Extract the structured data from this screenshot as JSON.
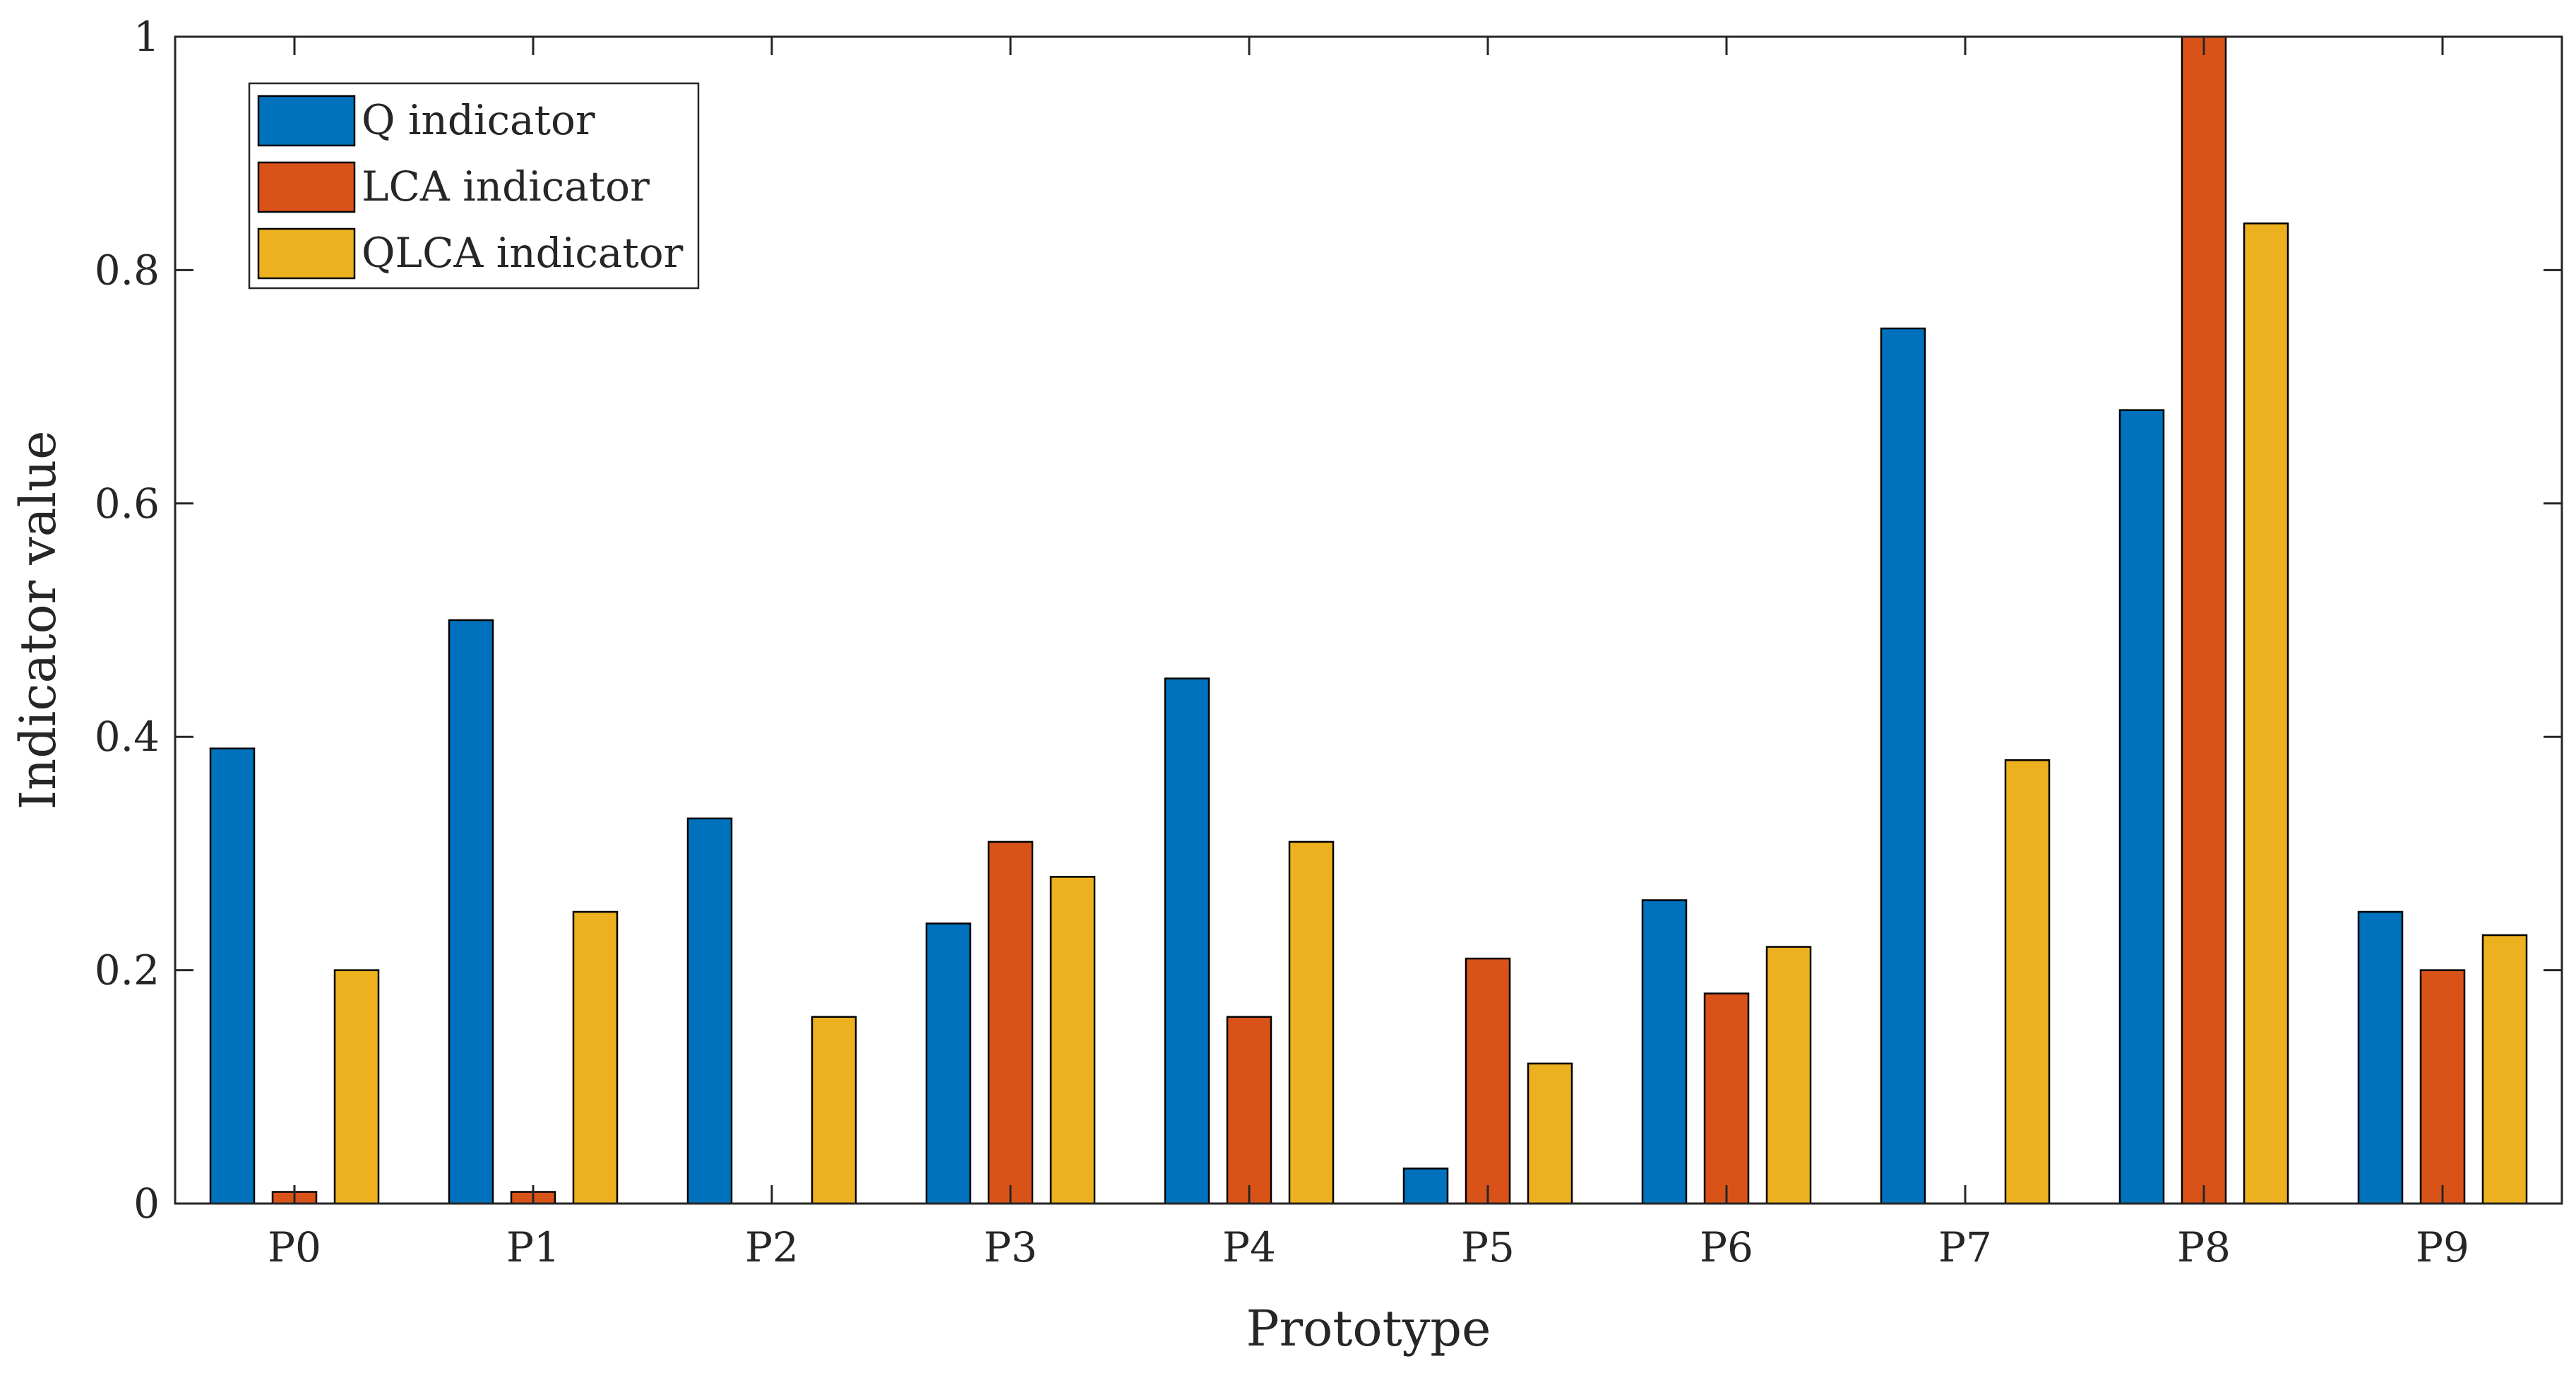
{
  "chart_data": {
    "type": "bar",
    "title": "",
    "xlabel": "Prototype",
    "ylabel": "Indicator value",
    "categories": [
      "P0",
      "P1",
      "P2",
      "P3",
      "P4",
      "P5",
      "P6",
      "P7",
      "P8",
      "P9"
    ],
    "ylim": [
      0,
      1
    ],
    "yticks": [
      0,
      0.2,
      0.4,
      0.6,
      0.8,
      1
    ],
    "ytick_labels": [
      "0",
      "0.2",
      "0.4",
      "0.6",
      "0.8",
      "1"
    ],
    "grid": false,
    "legend_position": "top-left",
    "series": [
      {
        "name": "Q indicator",
        "color": "#0072BD",
        "values": [
          0.39,
          0.5,
          0.33,
          0.24,
          0.45,
          0.03,
          0.26,
          0.75,
          0.68,
          0.25
        ]
      },
      {
        "name": "LCA indicator",
        "color": "#D95319",
        "values": [
          0.01,
          0.01,
          0.0,
          0.31,
          0.16,
          0.21,
          0.18,
          0.0,
          1.0,
          0.2
        ]
      },
      {
        "name": "QLCA indicator",
        "color": "#EDB120",
        "values": [
          0.2,
          0.25,
          0.16,
          0.28,
          0.31,
          0.12,
          0.22,
          0.38,
          0.84,
          0.23
        ]
      }
    ]
  }
}
